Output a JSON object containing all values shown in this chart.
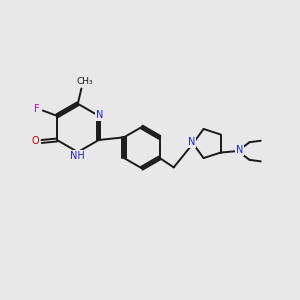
{
  "bg_color": "#e8e8e8",
  "bond_color": "#1a1a1a",
  "bond_width": 1.4,
  "N_color": "#2020e0",
  "O_color": "#cc0000",
  "F_color": "#cc00cc",
  "C_color": "#1a1a1a",
  "font_size": 7.0,
  "figsize": [
    3.0,
    3.0
  ],
  "dpi": 100,
  "xlim": [
    0,
    10
  ],
  "ylim": [
    0,
    10
  ]
}
